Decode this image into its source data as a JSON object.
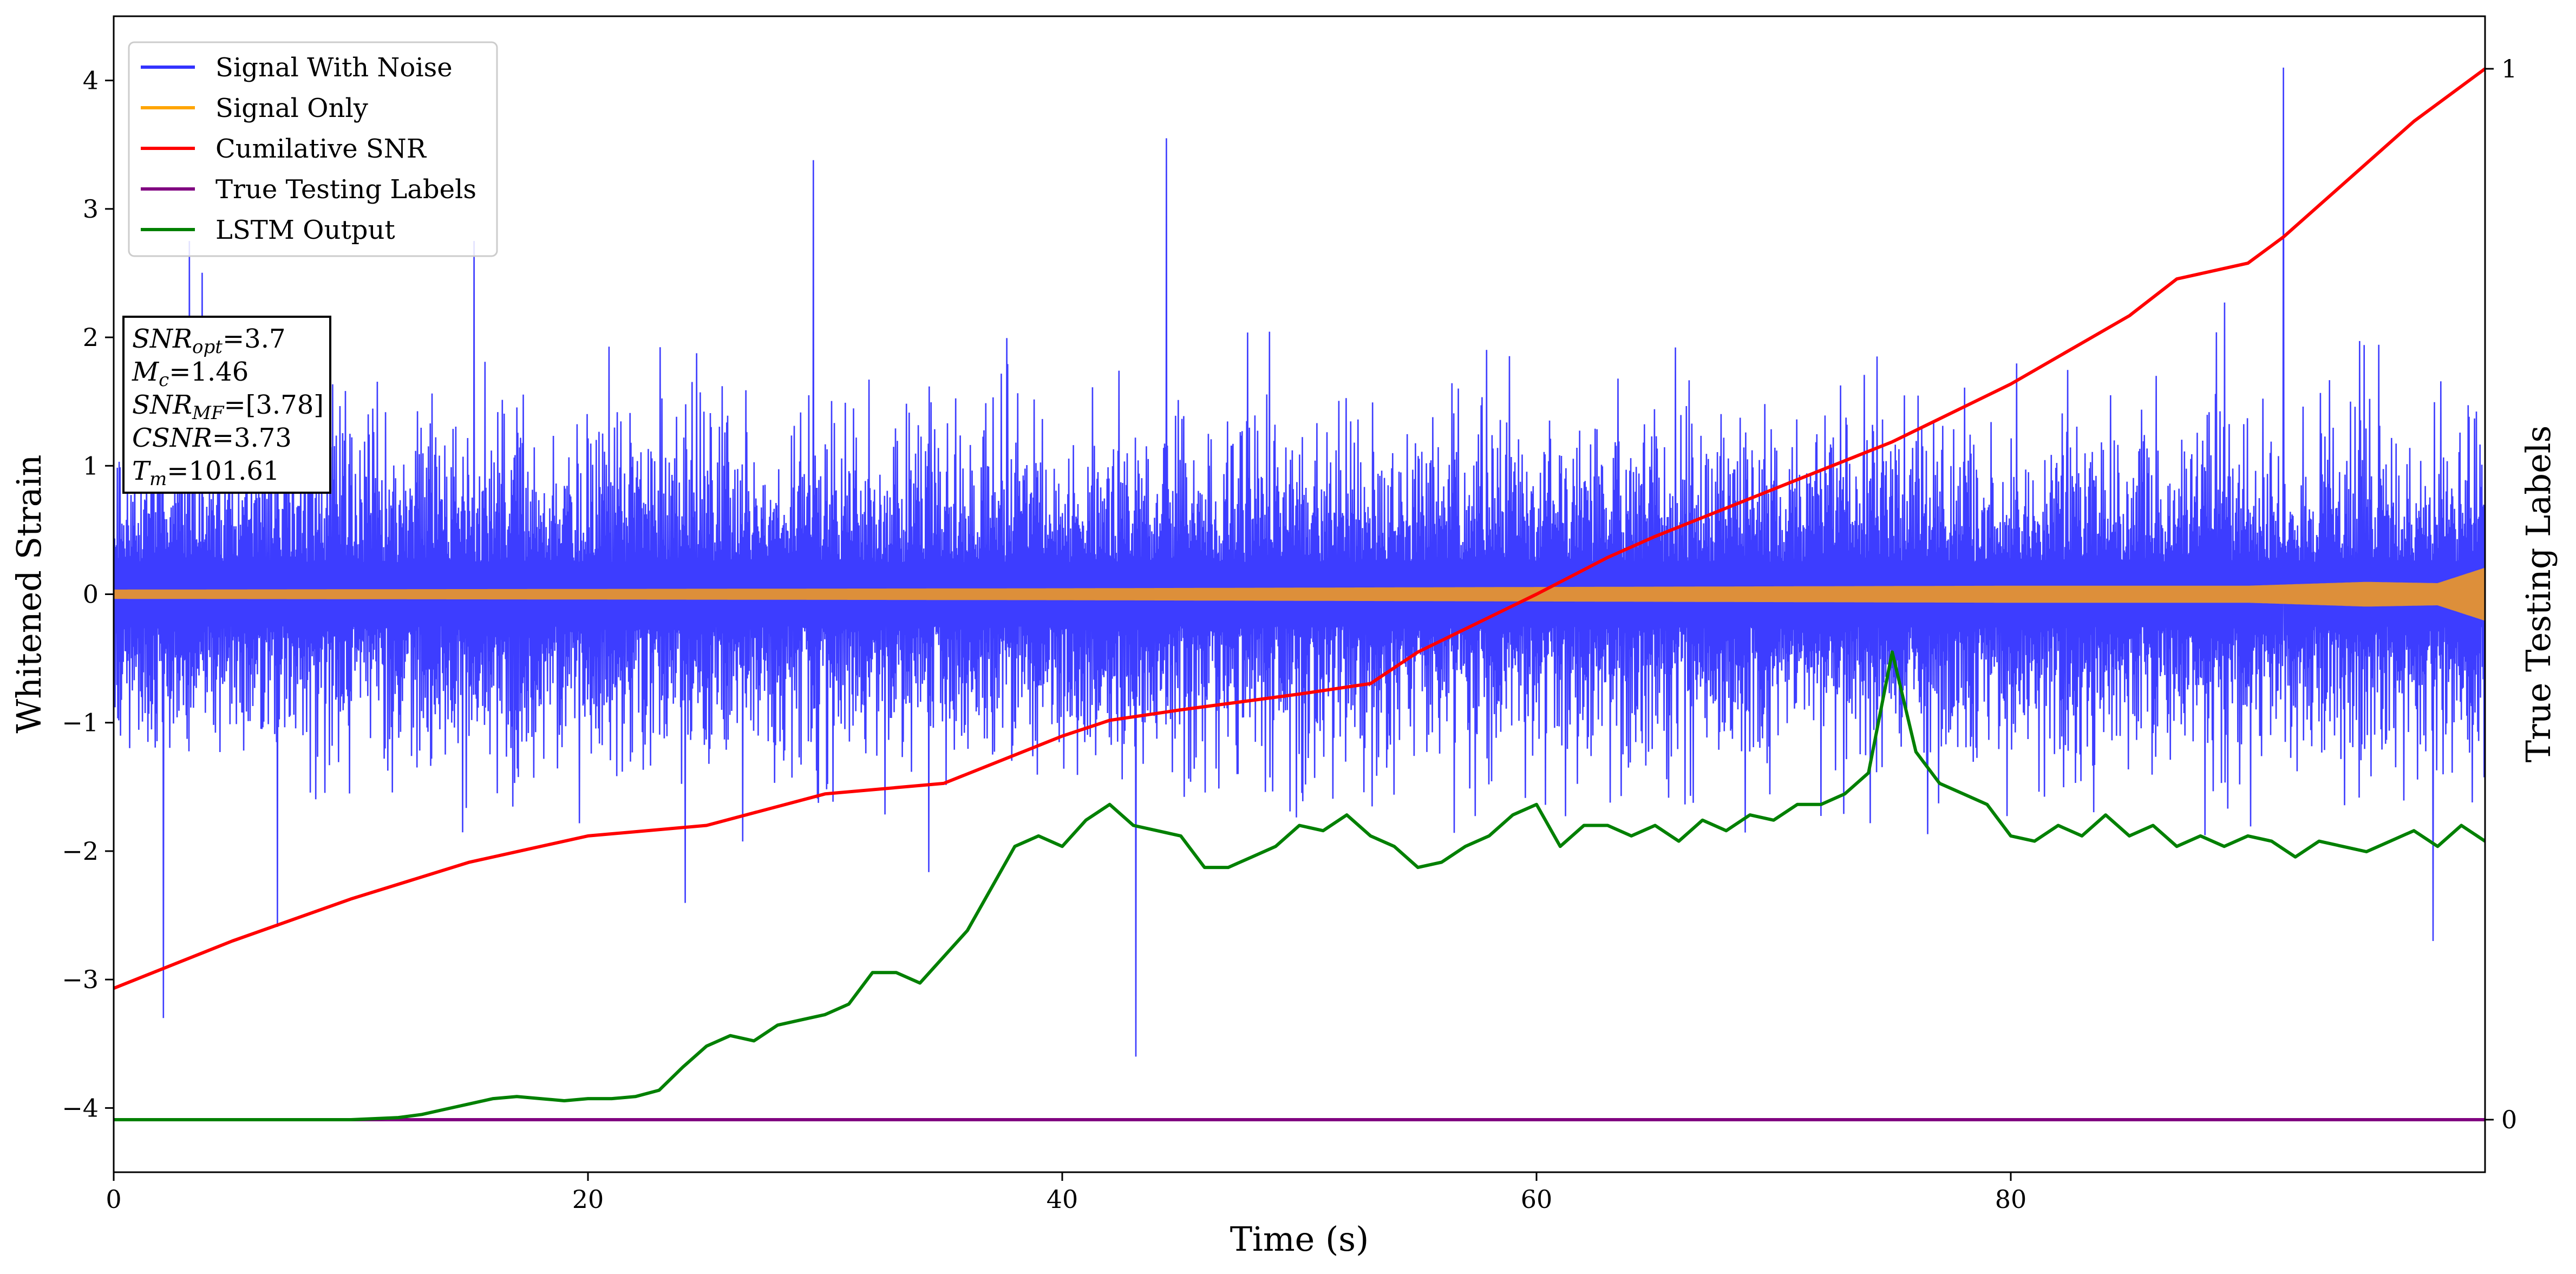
{
  "chart_data": {
    "type": "line",
    "xlabel": "Time (s)",
    "ylabel": "Whitened Strain",
    "y2label": "True Testing Labels",
    "xlim": [
      0,
      100
    ],
    "ylim": [
      -4.5,
      4.5
    ],
    "y2lim": [
      -0.05,
      1.05
    ],
    "xticks": [
      0,
      20,
      40,
      60,
      80
    ],
    "yticks": [
      -4,
      -3,
      -2,
      -1,
      0,
      1,
      2,
      3,
      4
    ],
    "y2ticks": [
      0,
      1
    ],
    "grid": false,
    "legend_position": "top-left",
    "series": [
      {
        "name": "Signal With Noise",
        "color": "#3333ff",
        "axis": "left",
        "noise_sigma": 0.62,
        "approx_extremes": [
          [
            2.1,
            -3.3
          ],
          [
            3.2,
            2.75
          ],
          [
            15.2,
            2.75
          ],
          [
            29.5,
            3.38
          ],
          [
            43.1,
            -3.6
          ],
          [
            44.4,
            3.55
          ],
          [
            91.5,
            4.1
          ],
          [
            97.8,
            -2.7
          ]
        ]
      },
      {
        "name": "Signal Only",
        "color": "#ffa500",
        "axis": "left",
        "envelope": [
          [
            0,
            0.03
          ],
          [
            20,
            0.035
          ],
          [
            40,
            0.04
          ],
          [
            60,
            0.05
          ],
          [
            80,
            0.06
          ],
          [
            90,
            0.06
          ],
          [
            95,
            0.09
          ],
          [
            98,
            0.08
          ],
          [
            100,
            0.2
          ]
        ]
      },
      {
        "name": "Cumilative SNR",
        "color": "#ff0000",
        "axis": "right",
        "x": [
          0,
          5,
          10,
          15,
          20,
          25,
          30,
          35,
          40,
          42,
          45,
          50,
          53,
          55,
          60,
          63,
          65,
          70,
          75,
          80,
          85,
          87,
          90,
          91.5,
          93,
          95,
          97,
          100
        ],
        "y": [
          0.125,
          0.17,
          0.21,
          0.245,
          0.27,
          0.28,
          0.31,
          0.32,
          0.365,
          0.38,
          0.39,
          0.405,
          0.415,
          0.445,
          0.5,
          0.535,
          0.555,
          0.6,
          0.645,
          0.7,
          0.765,
          0.8,
          0.815,
          0.84,
          0.87,
          0.91,
          0.95,
          1.0
        ]
      },
      {
        "name": "True Testing Labels",
        "color": "#800080",
        "axis": "right",
        "x": [
          0,
          100
        ],
        "y": [
          0,
          0
        ]
      },
      {
        "name": "LSTM Output",
        "color": "#008000",
        "axis": "right",
        "x": [
          0,
          5,
          10,
          12,
          13,
          14,
          15,
          16,
          17,
          18,
          19,
          20,
          21,
          22,
          23,
          24,
          25,
          26,
          27,
          28,
          29,
          30,
          31,
          32,
          33,
          34,
          35,
          36,
          37,
          38,
          39,
          40,
          41,
          42,
          43,
          44,
          45,
          46,
          47,
          48,
          49,
          50,
          51,
          52,
          53,
          54,
          55,
          56,
          57,
          58,
          59,
          60,
          61,
          62,
          63,
          64,
          65,
          66,
          67,
          68,
          69,
          70,
          71,
          72,
          73,
          74,
          75,
          76,
          77,
          78,
          79,
          80,
          81,
          82,
          83,
          84,
          85,
          86,
          87,
          88,
          89,
          90,
          91,
          92,
          93,
          94,
          95,
          96,
          97,
          98,
          99,
          100
        ],
        "y": [
          0,
          0,
          0,
          0.002,
          0.005,
          0.01,
          0.015,
          0.02,
          0.022,
          0.02,
          0.018,
          0.02,
          0.02,
          0.022,
          0.028,
          0.05,
          0.07,
          0.08,
          0.075,
          0.09,
          0.095,
          0.1,
          0.11,
          0.14,
          0.14,
          0.13,
          0.155,
          0.18,
          0.22,
          0.26,
          0.27,
          0.26,
          0.285,
          0.3,
          0.28,
          0.275,
          0.27,
          0.24,
          0.24,
          0.25,
          0.26,
          0.28,
          0.275,
          0.29,
          0.27,
          0.26,
          0.24,
          0.245,
          0.26,
          0.27,
          0.29,
          0.3,
          0.26,
          0.28,
          0.28,
          0.27,
          0.28,
          0.265,
          0.285,
          0.275,
          0.29,
          0.285,
          0.3,
          0.3,
          0.31,
          0.33,
          0.445,
          0.35,
          0.32,
          0.31,
          0.3,
          0.27,
          0.265,
          0.28,
          0.27,
          0.29,
          0.27,
          0.28,
          0.26,
          0.27,
          0.26,
          0.27,
          0.265,
          0.25,
          0.265,
          0.26,
          0.255,
          0.265,
          0.275,
          0.26,
          0.28,
          0.265
        ]
      }
    ],
    "annotation_lines": [
      {
        "prefix": "SNR",
        "sub": "opt",
        "value": "=3.7"
      },
      {
        "prefix": "M",
        "sub": "c",
        "value": "=1.46"
      },
      {
        "prefix": "SNR",
        "sub": "MF",
        "value": "=[3.78]"
      },
      {
        "prefix": "CSNR",
        "sub": "",
        "value": "=3.73"
      },
      {
        "prefix": "T",
        "sub": "m",
        "value": "=101.61"
      }
    ]
  }
}
